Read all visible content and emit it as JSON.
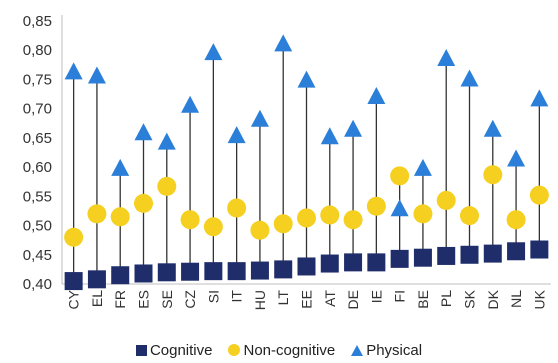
{
  "chart_data": {
    "type": "scatter",
    "categories": [
      "CY",
      "EL",
      "FR",
      "ES",
      "SE",
      "CZ",
      "SI",
      "IT",
      "HU",
      "LT",
      "EE",
      "AT",
      "DE",
      "IE",
      "FI",
      "BE",
      "PL",
      "SK",
      "DK",
      "NL",
      "UK"
    ],
    "series": [
      {
        "name": "Cognitive",
        "marker": "square",
        "color": "#1f2d6b",
        "values": [
          0.405,
          0.408,
          0.415,
          0.418,
          0.42,
          0.421,
          0.422,
          0.422,
          0.423,
          0.425,
          0.43,
          0.435,
          0.437,
          0.437,
          0.443,
          0.445,
          0.448,
          0.45,
          0.452,
          0.456,
          0.459
        ]
      },
      {
        "name": "Non-cognitive",
        "marker": "circle",
        "color": "#f5d020",
        "values": [
          0.48,
          0.52,
          0.515,
          0.538,
          0.567,
          0.51,
          0.498,
          0.53,
          0.492,
          0.503,
          0.513,
          0.518,
          0.51,
          0.533,
          0.585,
          0.52,
          0.543,
          0.517,
          0.587,
          0.51,
          0.552
        ]
      },
      {
        "name": "Physical",
        "marker": "triangle",
        "color": "#2b7fd9",
        "values": [
          0.762,
          0.755,
          0.597,
          0.658,
          0.642,
          0.705,
          0.795,
          0.653,
          0.681,
          0.81,
          0.748,
          0.651,
          0.664,
          0.72,
          0.528,
          0.597,
          0.785,
          0.75,
          0.664,
          0.613,
          0.716
        ]
      }
    ],
    "yticks": [
      "0,40",
      "0,45",
      "0,50",
      "0,55",
      "0,60",
      "0,65",
      "0,70",
      "0,75",
      "0,80",
      "0,85"
    ],
    "ylim": [
      0.4,
      0.85
    ],
    "grid": false,
    "legend_position": "bottom"
  },
  "legend": {
    "cognitive": "Cognitive",
    "non_cognitive": "Non-cognitive",
    "physical": "Physical"
  }
}
